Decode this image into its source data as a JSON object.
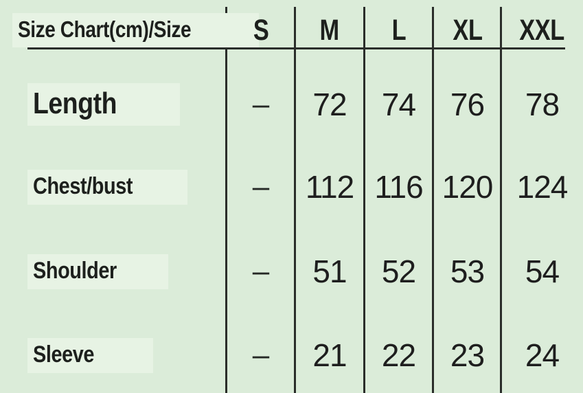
{
  "colors": {
    "background": "#dbecd9",
    "line": "#2a2d2a",
    "text": "#1d201d",
    "highlight": "#e7f3e4"
  },
  "chart_data": {
    "type": "table",
    "title": "Size Chart(cm)/Size",
    "units": "cm",
    "columns": [
      "Size Chart(cm)/Size",
      "S",
      "M",
      "L",
      "XL",
      "XXL"
    ],
    "rows": [
      {
        "label": "Length",
        "values": [
          "–",
          "72",
          "74",
          "76",
          "78"
        ]
      },
      {
        "label": "Chest/bust",
        "values": [
          "–",
          "112",
          "116",
          "120",
          "124"
        ]
      },
      {
        "label": "Shoulder",
        "values": [
          "–",
          "51",
          "52",
          "53",
          "54"
        ]
      },
      {
        "label": "Sleeve",
        "values": [
          "–",
          "21",
          "22",
          "23",
          "24"
        ]
      }
    ]
  }
}
